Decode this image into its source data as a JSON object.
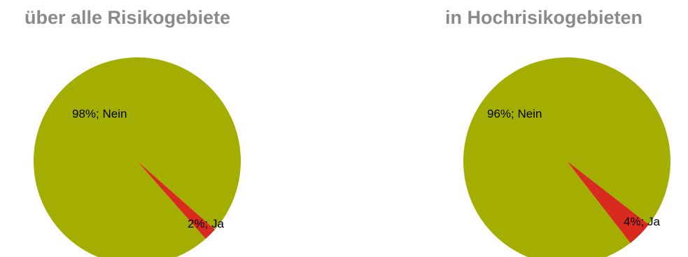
{
  "colors": {
    "background": "#ffffff",
    "title": "#8a8a8a",
    "nein": "#a4ae00",
    "ja": "#d92a1f",
    "label": "#000000"
  },
  "chart_data": [
    {
      "type": "pie",
      "title": "über alle Risikogebiete",
      "slices": [
        {
          "name": "Nein",
          "value": 98,
          "label": "98%; Nein",
          "color": "#a4ae00"
        },
        {
          "name": "Ja",
          "value": 2,
          "label": "2%; Ja",
          "color": "#d92a1f"
        }
      ]
    },
    {
      "type": "pie",
      "title": "in Hochrisikogebieten",
      "slices": [
        {
          "name": "Nein",
          "value": 96,
          "label": "96%; Nein",
          "color": "#a4ae00"
        },
        {
          "name": "Ja",
          "value": 4,
          "label": "4%; Ja",
          "color": "#d92a1f"
        }
      ]
    }
  ]
}
